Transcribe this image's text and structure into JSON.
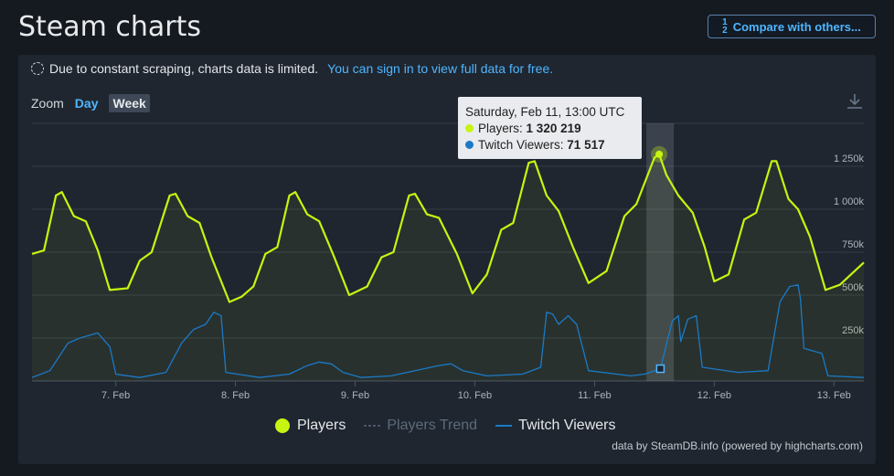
{
  "page": {
    "title": "Steam charts",
    "compare_button": "Compare with others...",
    "compare_frac_top": "1",
    "compare_frac_bottom": "2",
    "compare_frac_side": "3"
  },
  "notice": {
    "text": "Due to constant scraping, charts data is limited.",
    "link": "You can sign in to view full data for free."
  },
  "zoom": {
    "label": "Zoom",
    "day": "Day",
    "week": "Week"
  },
  "tooltip": {
    "date": "Saturday, Feb 11, 13:00 UTC",
    "players_label": "Players:",
    "players_value": "1 320 219",
    "twitch_label": "Twitch Viewers:",
    "twitch_value": "71 517"
  },
  "legend": {
    "players": "Players",
    "trend": "Players Trend",
    "twitch": "Twitch Viewers"
  },
  "credits": "data by SteamDB.info (powered by highcharts.com)",
  "colors": {
    "players": "#c7f410",
    "twitch": "#1a7ac7",
    "link": "#4fb6ff"
  },
  "chart_data": {
    "type": "line",
    "x_range_days": [
      6.3,
      13.25
    ],
    "y_range": [
      0,
      1500000
    ],
    "yticks": [
      250000,
      500000,
      750000,
      1000000,
      1250000
    ],
    "ytick_labels": [
      "250k",
      "500k",
      "750k",
      "1 000k",
      "1 250k"
    ],
    "xticks": [
      7,
      8,
      9,
      10,
      11,
      12,
      13
    ],
    "xtick_labels": [
      "7. Feb",
      "8. Feb",
      "9. Feb",
      "10. Feb",
      "11. Feb",
      "12. Feb",
      "13. Feb"
    ],
    "highlight_x": 11.54,
    "series": [
      {
        "name": "Players",
        "points": [
          [
            6.3,
            740000
          ],
          [
            6.4,
            760000
          ],
          [
            6.5,
            1080000
          ],
          [
            6.55,
            1100000
          ],
          [
            6.65,
            960000
          ],
          [
            6.75,
            930000
          ],
          [
            6.85,
            760000
          ],
          [
            6.95,
            530000
          ],
          [
            7.1,
            540000
          ],
          [
            7.2,
            700000
          ],
          [
            7.3,
            750000
          ],
          [
            7.45,
            1080000
          ],
          [
            7.5,
            1090000
          ],
          [
            7.6,
            960000
          ],
          [
            7.7,
            920000
          ],
          [
            7.8,
            720000
          ],
          [
            7.95,
            460000
          ],
          [
            8.05,
            490000
          ],
          [
            8.15,
            550000
          ],
          [
            8.25,
            740000
          ],
          [
            8.35,
            780000
          ],
          [
            8.45,
            1080000
          ],
          [
            8.5,
            1100000
          ],
          [
            8.6,
            970000
          ],
          [
            8.7,
            930000
          ],
          [
            8.82,
            730000
          ],
          [
            8.95,
            500000
          ],
          [
            9.1,
            550000
          ],
          [
            9.22,
            720000
          ],
          [
            9.32,
            750000
          ],
          [
            9.45,
            1080000
          ],
          [
            9.5,
            1090000
          ],
          [
            9.6,
            970000
          ],
          [
            9.7,
            950000
          ],
          [
            9.85,
            740000
          ],
          [
            9.98,
            510000
          ],
          [
            10.1,
            620000
          ],
          [
            10.22,
            880000
          ],
          [
            10.32,
            920000
          ],
          [
            10.45,
            1270000
          ],
          [
            10.5,
            1280000
          ],
          [
            10.6,
            1080000
          ],
          [
            10.7,
            990000
          ],
          [
            10.82,
            780000
          ],
          [
            10.95,
            570000
          ],
          [
            11.1,
            640000
          ],
          [
            11.25,
            960000
          ],
          [
            11.35,
            1030000
          ],
          [
            11.5,
            1300000
          ],
          [
            11.54,
            1320000
          ],
          [
            11.6,
            1200000
          ],
          [
            11.7,
            1080000
          ],
          [
            11.82,
            980000
          ],
          [
            11.92,
            780000
          ],
          [
            12.0,
            580000
          ],
          [
            12.12,
            620000
          ],
          [
            12.25,
            940000
          ],
          [
            12.35,
            980000
          ],
          [
            12.48,
            1280000
          ],
          [
            12.52,
            1280000
          ],
          [
            12.62,
            1060000
          ],
          [
            12.7,
            1000000
          ],
          [
            12.8,
            840000
          ],
          [
            12.93,
            530000
          ],
          [
            13.05,
            560000
          ],
          [
            13.25,
            690000
          ]
        ]
      },
      {
        "name": "Twitch Viewers",
        "points": [
          [
            6.3,
            20000
          ],
          [
            6.45,
            60000
          ],
          [
            6.6,
            220000
          ],
          [
            6.7,
            250000
          ],
          [
            6.8,
            270000
          ],
          [
            6.85,
            280000
          ],
          [
            6.95,
            200000
          ],
          [
            7.0,
            40000
          ],
          [
            7.2,
            20000
          ],
          [
            7.42,
            50000
          ],
          [
            7.55,
            220000
          ],
          [
            7.65,
            300000
          ],
          [
            7.75,
            330000
          ],
          [
            7.82,
            400000
          ],
          [
            7.88,
            380000
          ],
          [
            7.92,
            50000
          ],
          [
            8.2,
            20000
          ],
          [
            8.45,
            40000
          ],
          [
            8.6,
            90000
          ],
          [
            8.7,
            110000
          ],
          [
            8.8,
            100000
          ],
          [
            8.9,
            50000
          ],
          [
            9.05,
            20000
          ],
          [
            9.3,
            30000
          ],
          [
            9.5,
            60000
          ],
          [
            9.7,
            90000
          ],
          [
            9.8,
            100000
          ],
          [
            9.9,
            60000
          ],
          [
            10.1,
            30000
          ],
          [
            10.4,
            40000
          ],
          [
            10.55,
            80000
          ],
          [
            10.6,
            400000
          ],
          [
            10.65,
            390000
          ],
          [
            10.7,
            330000
          ],
          [
            10.78,
            380000
          ],
          [
            10.85,
            330000
          ],
          [
            10.95,
            60000
          ],
          [
            11.3,
            30000
          ],
          [
            11.42,
            40000
          ],
          [
            11.55,
            71517
          ],
          [
            11.65,
            350000
          ],
          [
            11.7,
            380000
          ],
          [
            11.72,
            230000
          ],
          [
            11.78,
            360000
          ],
          [
            11.85,
            380000
          ],
          [
            11.9,
            80000
          ],
          [
            12.2,
            50000
          ],
          [
            12.45,
            60000
          ],
          [
            12.55,
            460000
          ],
          [
            12.63,
            550000
          ],
          [
            12.7,
            560000
          ],
          [
            12.72,
            480000
          ],
          [
            12.75,
            190000
          ],
          [
            12.9,
            160000
          ],
          [
            12.95,
            30000
          ],
          [
            13.25,
            20000
          ]
        ]
      }
    ]
  }
}
